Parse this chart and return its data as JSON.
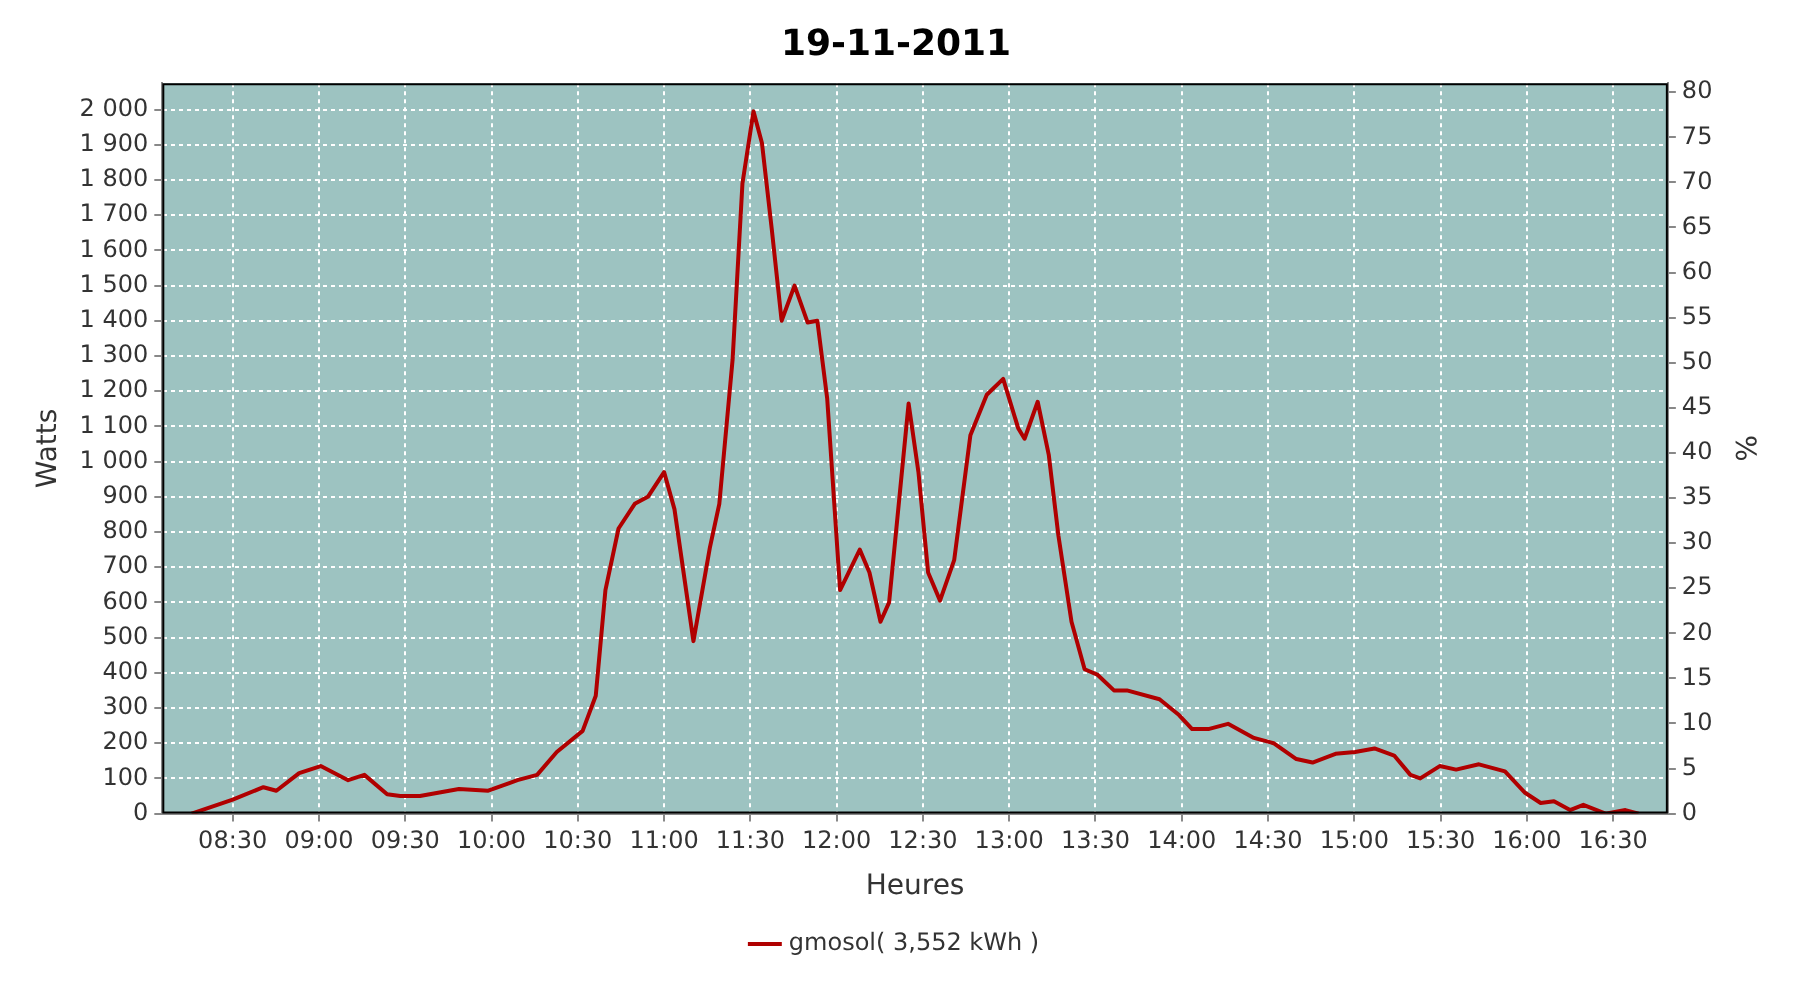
{
  "chart_data": {
    "type": "line",
    "title": "19-11-2011",
    "xlabel": "Heures",
    "ylabel": "Watts",
    "y2label": "%",
    "xlim": [
      8.092,
      16.817
    ],
    "xticks": [
      {
        "value": 8.5,
        "label": "08:30"
      },
      {
        "value": 9,
        "label": "09:00"
      },
      {
        "value": 9.5,
        "label": "09:30"
      },
      {
        "value": 10,
        "label": "10:00"
      },
      {
        "value": 10.5,
        "label": "10:30"
      },
      {
        "value": 11,
        "label": "11:00"
      },
      {
        "value": 11.5,
        "label": "11:30"
      },
      {
        "value": 12,
        "label": "12:00"
      },
      {
        "value": 12.5,
        "label": "12:30"
      },
      {
        "value": 13,
        "label": "13:00"
      },
      {
        "value": 13.5,
        "label": "13:30"
      },
      {
        "value": 14,
        "label": "14:00"
      },
      {
        "value": 14.5,
        "label": "14:30"
      },
      {
        "value": 15,
        "label": "15:00"
      },
      {
        "value": 15.5,
        "label": "15:30"
      },
      {
        "value": 16,
        "label": "16:00"
      },
      {
        "value": 16.5,
        "label": "16:30"
      }
    ],
    "ylim": [
      0,
      2075
    ],
    "yticks": [
      0,
      100,
      200,
      300,
      400,
      500,
      600,
      700,
      800,
      900,
      {
        "value": 1000,
        "label": "1 000"
      },
      {
        "value": 1100,
        "label": "1 100"
      },
      {
        "value": 1200,
        "label": "1 200"
      },
      {
        "value": 1300,
        "label": "1 300"
      },
      {
        "value": 1400,
        "label": "1 400"
      },
      {
        "value": 1500,
        "label": "1 500"
      },
      {
        "value": 1600,
        "label": "1 600"
      },
      {
        "value": 1700,
        "label": "1 700"
      },
      {
        "value": 1800,
        "label": "1 800"
      },
      {
        "value": 1900,
        "label": "1 900"
      },
      {
        "value": 2000,
        "label": "2 000"
      }
    ],
    "y2lim": [
      0,
      81
    ],
    "y2ticks": [
      0,
      5,
      10,
      15,
      20,
      25,
      30,
      35,
      40,
      45,
      50,
      55,
      60,
      65,
      70,
      75,
      80
    ],
    "grid": true,
    "legend": "bottom",
    "marker": "none",
    "line_style": "solid",
    "series": [
      {
        "name": "gmosol( 3,552 kWh )",
        "color": "#b00000",
        "x": [
          8.262,
          8.5,
          8.678,
          8.753,
          8.885,
          9.01,
          9.169,
          9.263,
          9.395,
          9.471,
          9.585,
          9.811,
          9.981,
          10.15,
          10.264,
          10.378,
          10.528,
          10.604,
          10.66,
          10.736,
          10.83,
          10.906,
          11.0,
          11.06,
          11.17,
          11.265,
          11.32,
          11.397,
          11.454,
          11.518,
          11.567,
          11.624,
          11.681,
          11.756,
          11.832,
          11.888,
          11.945,
          12.02,
          12.134,
          12.19,
          12.254,
          12.304,
          12.417,
          12.474,
          12.53,
          12.599,
          12.681,
          12.775,
          12.87,
          12.965,
          13.052,
          13.089,
          13.165,
          13.229,
          13.285,
          13.361,
          13.437,
          13.51,
          13.607,
          13.682,
          13.871,
          13.984,
          14.06,
          14.154,
          14.268,
          14.418,
          14.532,
          14.664,
          14.758,
          14.891,
          15.004,
          15.117,
          15.231,
          15.325,
          15.382,
          15.495,
          15.59,
          15.722,
          15.873,
          15.987,
          16.08,
          16.157,
          16.25,
          16.327,
          16.456,
          16.571,
          16.647
        ],
        "values": [
          0,
          40,
          75,
          65,
          115,
          135,
          95,
          110,
          55,
          50,
          50,
          70,
          65,
          95,
          110,
          175,
          235,
          335,
          635,
          810,
          880,
          900,
          970,
          865,
          490,
          755,
          880,
          1290,
          1790,
          1995,
          1905,
          1660,
          1400,
          1500,
          1395,
          1400,
          1180,
          635,
          750,
          685,
          545,
          600,
          1165,
          970,
          685,
          605,
          720,
          1075,
          1190,
          1235,
          1095,
          1065,
          1170,
          1020,
          790,
          545,
          410,
          395,
          350,
          350,
          325,
          280,
          240,
          240,
          255,
          215,
          200,
          155,
          145,
          170,
          175,
          185,
          165,
          110,
          100,
          135,
          125,
          140,
          120,
          60,
          30,
          35,
          10,
          25,
          0,
          10,
          0
        ]
      }
    ]
  }
}
